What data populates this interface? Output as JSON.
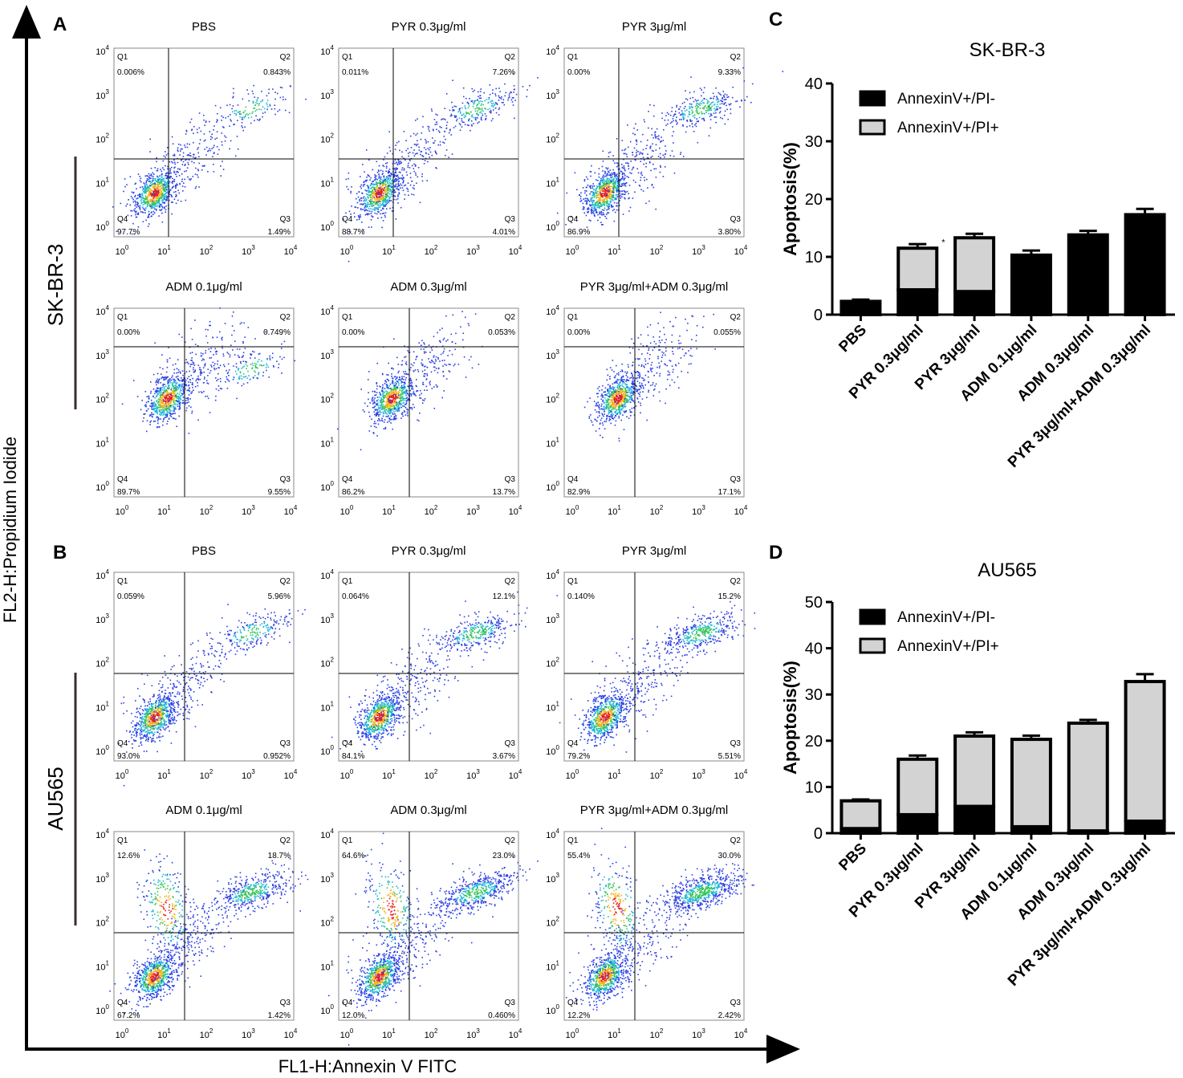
{
  "figure": {
    "panel_letters": [
      "A",
      "B",
      "C",
      "D"
    ],
    "y_axis_label": "FL2-H:Propidium Iodide",
    "x_axis_label": "FL1-H:Annexin V FITC",
    "row_labels": [
      "SK-BR-3",
      "AU565"
    ]
  },
  "flow_plots": [
    {
      "panel": "A",
      "title": "PBS",
      "q1": "0.006%",
      "q2": "0.843%",
      "q3": "1.49%",
      "q4": "97.7%"
    },
    {
      "panel": "A",
      "title": "PYR 0.3μg/ml",
      "q1": "0.011%",
      "q2": "7.26%",
      "q3": "4.01%",
      "q4": "88.7%"
    },
    {
      "panel": "A",
      "title": "PYR 3μg/ml",
      "q1": "0.00%",
      "q2": "9.33%",
      "q3": "3.80%",
      "q4": "86.9%"
    },
    {
      "panel": "A",
      "title": "ADM 0.1μg/ml",
      "q1": "0.00%",
      "q2": "0.749%",
      "q3": "9.55%",
      "q4": "89.7%"
    },
    {
      "panel": "A",
      "title": "ADM 0.3μg/ml",
      "q1": "0.00%",
      "q2": "0.053%",
      "q3": "13.7%",
      "q4": "86.2%"
    },
    {
      "panel": "A",
      "title": "PYR 3μg/ml+ADM 0.3μg/ml",
      "q1": "0.00%",
      "q2": "0.055%",
      "q3": "17.1%",
      "q4": "82.9%"
    },
    {
      "panel": "B",
      "title": "PBS",
      "q1": "0.059%",
      "q2": "5.96%",
      "q3": "0.952%",
      "q4": "93.0%"
    },
    {
      "panel": "B",
      "title": "PYR 0.3μg/ml",
      "q1": "0.064%",
      "q2": "12.1%",
      "q3": "3.67%",
      "q4": "84.1%"
    },
    {
      "panel": "B",
      "title": "PYR 3μg/ml",
      "q1": "0.140%",
      "q2": "15.2%",
      "q3": "5.51%",
      "q4": "79.2%"
    },
    {
      "panel": "B",
      "title": "ADM 0.1μg/ml",
      "q1": "12.6%",
      "q2": "18.7%",
      "q3": "1.42%",
      "q4": "67.2%"
    },
    {
      "panel": "B",
      "title": "ADM 0.3μg/ml",
      "q1": "64.6%",
      "q2": "23.0%",
      "q3": "0.460%",
      "q4": "12.0%"
    },
    {
      "panel": "B",
      "title": "PYR 3μg/ml+ADM 0.3μg/ml",
      "q1": "55.4%",
      "q2": "30.0%",
      "q3": "2.42%",
      "q4": "12.2%"
    }
  ],
  "flow_axis_ticks": {
    "bases": [
      "10",
      "10",
      "10",
      "10",
      "10"
    ],
    "exponents": [
      "0",
      "1",
      "2",
      "3",
      "4"
    ],
    "quadrant_labels": [
      "Q1",
      "Q2",
      "Q3",
      "Q4"
    ]
  },
  "chart_data": [
    {
      "type": "bar",
      "stacked": true,
      "panel": "C",
      "title": "SK-BR-3",
      "ylabel": "Apoptosis(%)",
      "xlabel": "",
      "ylim": [
        0,
        40
      ],
      "yticks": [
        0,
        10,
        20,
        30,
        40
      ],
      "categories": [
        "PBS",
        "PYR 0.3μg/ml",
        "PYR 3μg/ml",
        "ADM 0.1μg/ml",
        "ADM 0.3μg/ml",
        "PYR 3μg/ml+ADM 0.3μg/ml"
      ],
      "series": [
        {
          "name": "AnnexinV+/PI-",
          "color": "#000000",
          "values": [
            2.3,
            4.3,
            4.0,
            10.3,
            13.8,
            17.3
          ],
          "errors": [
            0.3,
            0.4,
            0.2,
            0.8,
            0.7,
            1.0
          ]
        },
        {
          "name": "AnnexinV+/PI+",
          "color": "#d3d3d3",
          "values": [
            0.0,
            7.2,
            9.3,
            0.0,
            0.0,
            0.0
          ],
          "errors": [
            0,
            0.7,
            0.7,
            0,
            0,
            0
          ]
        }
      ],
      "annotations": [
        "*"
      ],
      "legend": "top-left"
    },
    {
      "type": "bar",
      "stacked": true,
      "panel": "D",
      "title": "AU565",
      "ylabel": "Apoptosis(%)",
      "xlabel": "",
      "ylim": [
        0,
        50
      ],
      "yticks": [
        0,
        10,
        20,
        30,
        40,
        50
      ],
      "categories": [
        "PBS",
        "PYR 0.3μg/ml",
        "PYR 3μg/ml",
        "ADM 0.1μg/ml",
        "ADM 0.3μg/ml",
        "PYR 3μg/ml+ADM 0.3μg/ml"
      ],
      "series": [
        {
          "name": "AnnexinV+/PI-",
          "color": "#000000",
          "values": [
            1.0,
            4.0,
            5.8,
            1.4,
            0.5,
            2.6
          ],
          "errors": [
            0.2,
            0.5,
            0.4,
            0.2,
            0.1,
            0.3
          ]
        },
        {
          "name": "AnnexinV+/PI+",
          "color": "#d3d3d3",
          "values": [
            6.0,
            12.0,
            15.2,
            18.9,
            23.3,
            30.2
          ],
          "errors": [
            0.3,
            0.8,
            0.8,
            0.8,
            0.7,
            1.6
          ]
        }
      ],
      "legend": "top-left"
    }
  ]
}
